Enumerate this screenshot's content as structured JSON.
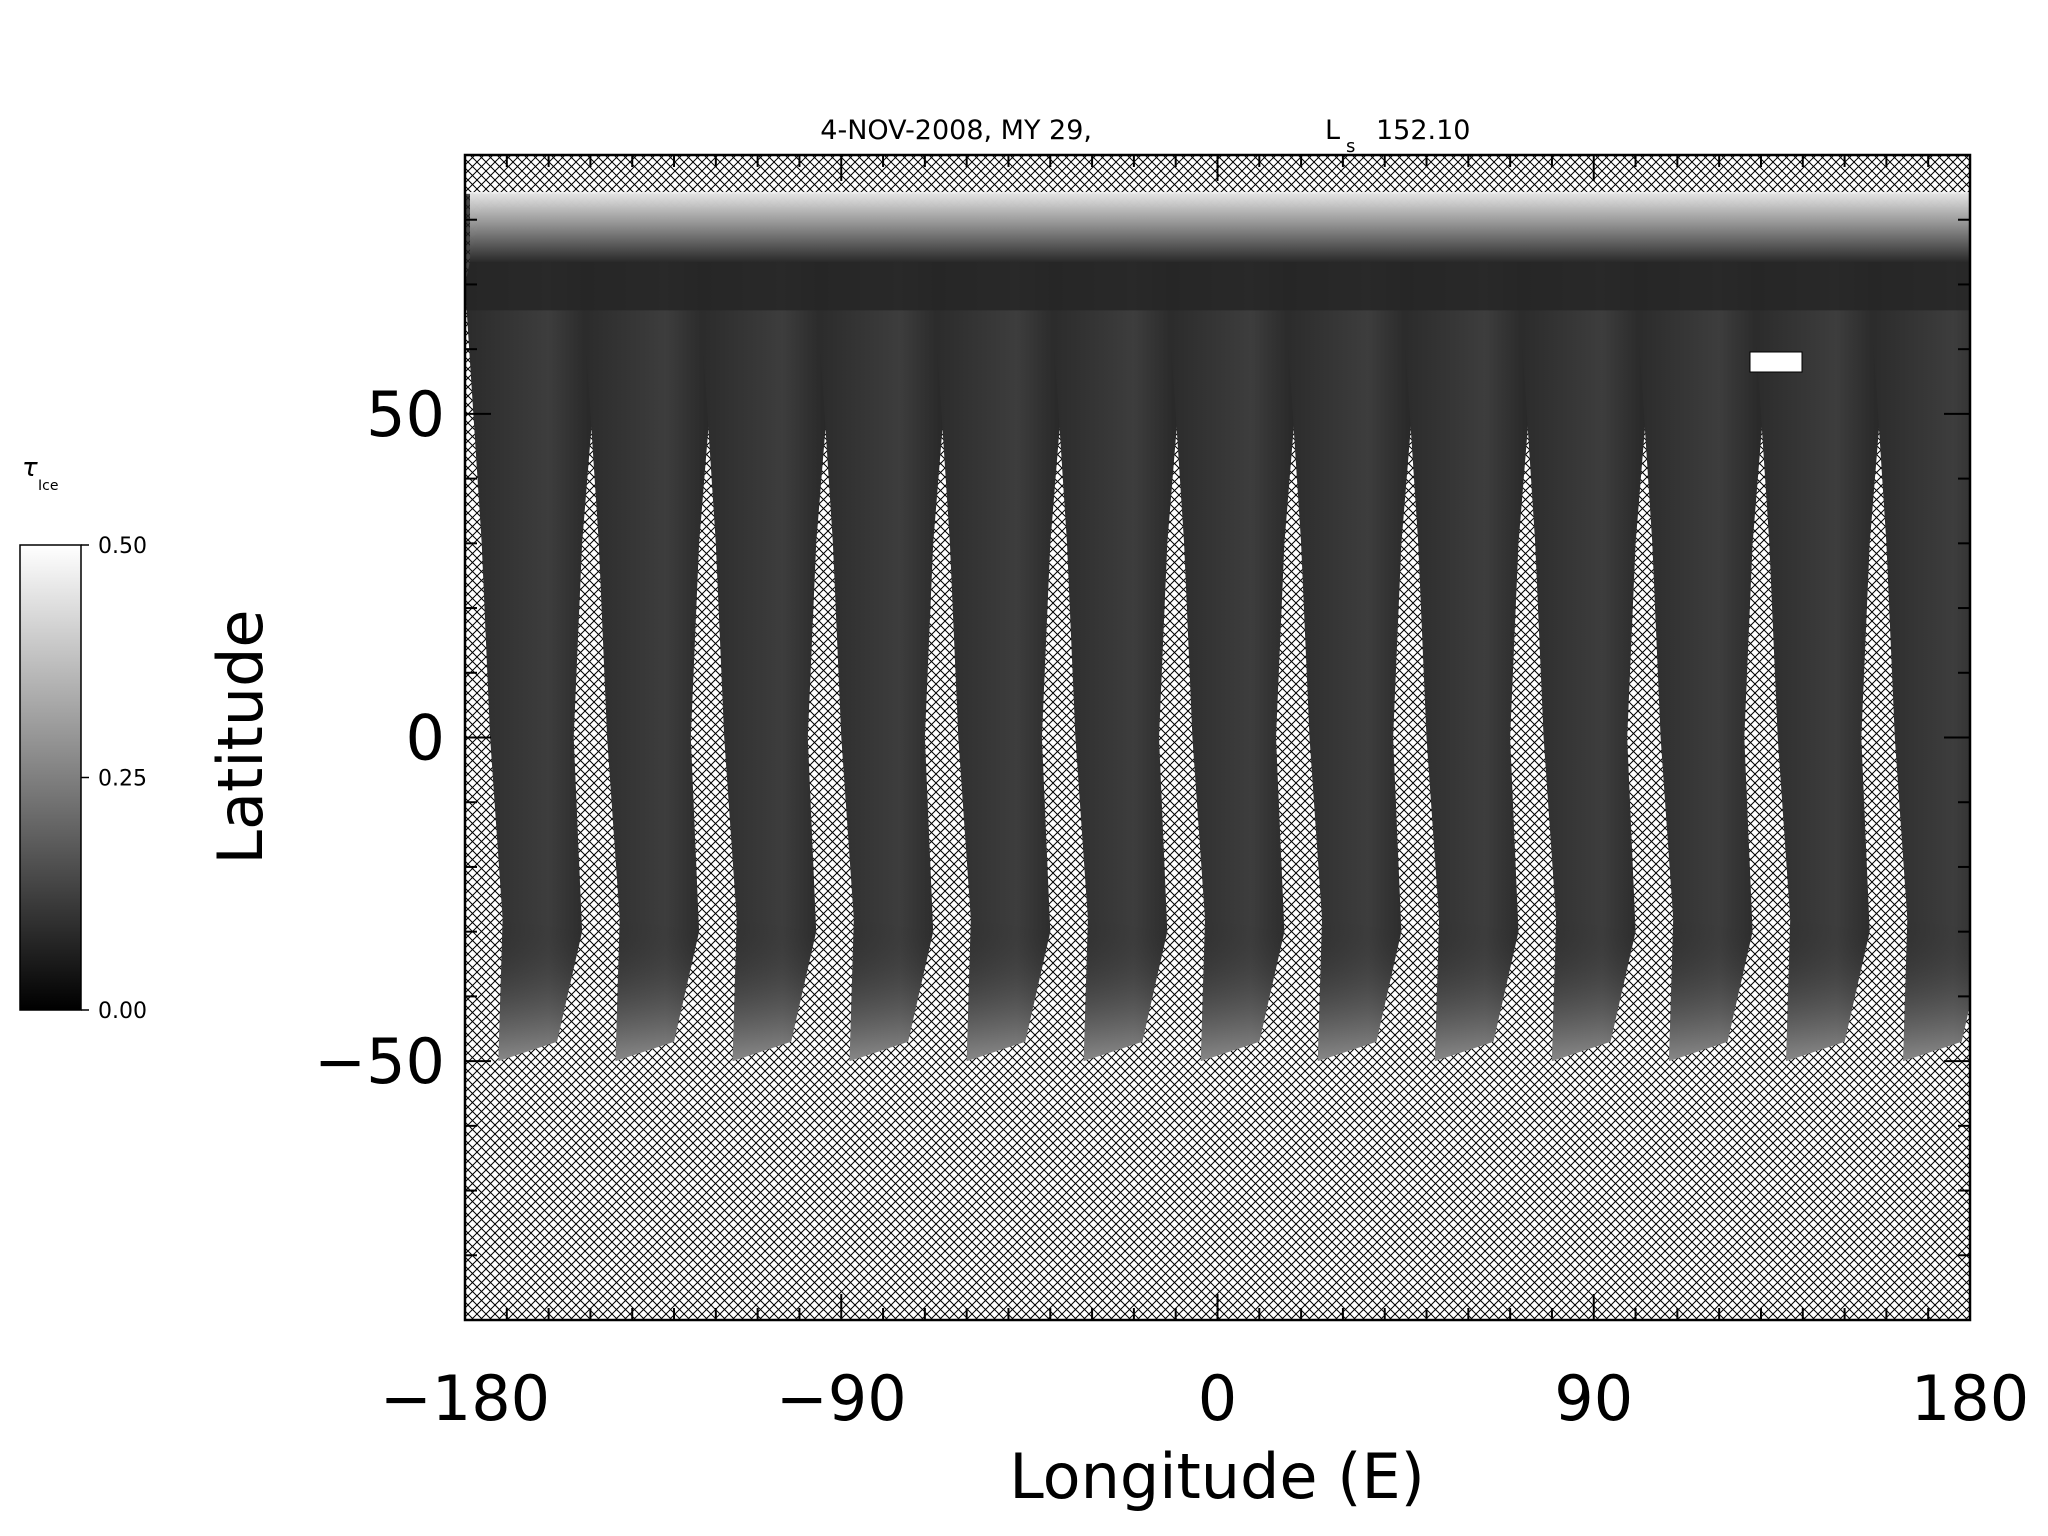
{
  "chart_data": {
    "type": "heatmap",
    "title": "4-NOV-2008, MY 29,",
    "title_ls_symbol": "L",
    "title_ls_subscript": "s",
    "title_ls_value": "152.10",
    "xlabel": "Longitude (E)",
    "ylabel": "Latitude",
    "xlim": [
      -180,
      180
    ],
    "ylim": [
      -90,
      90
    ],
    "x_ticks": [
      -180,
      -90,
      0,
      90,
      180
    ],
    "x_tick_labels": [
      "−180",
      "−90",
      "0",
      "90",
      "180"
    ],
    "y_ticks": [
      -50,
      0,
      50
    ],
    "y_tick_labels": [
      "−50",
      "0",
      "50"
    ],
    "x_minor_step": 10,
    "y_minor_step": 10,
    "missing_data_pattern": "crosshatch",
    "colorbar": {
      "label_symbol": "τ",
      "label_subscript": "Ice",
      "range": [
        0.0,
        0.5
      ],
      "ticks": [
        0.0,
        0.25,
        0.5
      ],
      "tick_labels": [
        "0.00",
        "0.25",
        "0.50"
      ],
      "colormap": "grayscale"
    },
    "swaths": {
      "count": 13,
      "spacing_deg_lon": 28,
      "lat_range": [
        -50,
        90
      ],
      "polar_cap_lat": 82,
      "description_values": "ice optical depth mostly 0.00-0.10 within swaths; values near 0.50 along the north polar cap edge (lat 75-85) and at southern swath ends near lat -45"
    },
    "colors": {
      "background": "#ffffff",
      "hatch": "#000000",
      "swath_low": "#1a1a1a",
      "swath_high": "#f2f2f2"
    }
  }
}
